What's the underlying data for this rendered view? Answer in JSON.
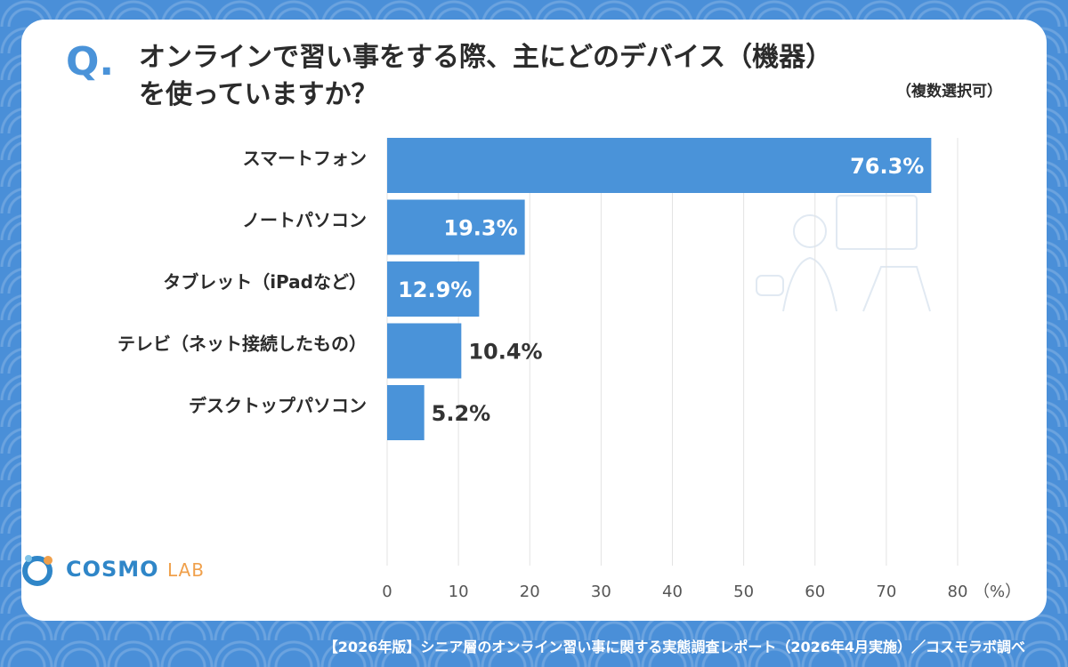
{
  "header": {
    "q_mark": "Q.",
    "title_line1": "オンラインで習い事をする際、主にどのデバイス（機器）",
    "title_line2": "を使っていますか？",
    "note": "（複数選択可）"
  },
  "logo": {
    "part1": "COSMO",
    "part2": "LAB"
  },
  "footer": {
    "source": "【2026年版】シニア層のオンライン習い事に関する実態調査レポート（2026年4月実施）／コスモラボ調べ"
  },
  "colors": {
    "bar": "#4a93d9",
    "accent": "#4a93d9"
  },
  "chart_data": {
    "type": "bar",
    "orientation": "horizontal",
    "title": "",
    "categories": [
      "スマートフォン",
      "ノートパソコン",
      "タブレット（iPadなど）",
      "テレビ（ネット接続したもの）",
      "デスクトップパソコン"
    ],
    "values": [
      76.3,
      19.3,
      12.9,
      10.4,
      5.2
    ],
    "value_labels": [
      "76.3%",
      "19.3%",
      "12.9%",
      "10.4%",
      "5.2%"
    ],
    "xlim": [
      0,
      80
    ],
    "xticks": [
      0,
      10,
      20,
      30,
      40,
      50,
      60,
      70,
      80
    ],
    "xunit": "（%）",
    "grid": true,
    "legend": "none"
  }
}
